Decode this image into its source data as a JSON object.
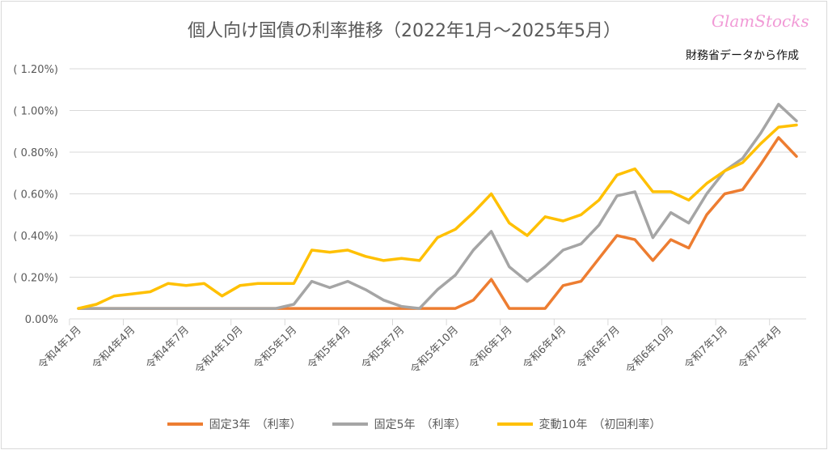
{
  "chart_data": {
    "type": "line",
    "title": "個人向け国債の利率推移（2022年1月～2025年5月）",
    "logo_text": "GlamStocks",
    "source_note": "財務省データから作成",
    "xlabel": "",
    "ylabel": "",
    "ylim": [
      0,
      1.2
    ],
    "y_ticks": [
      0,
      0.2,
      0.4,
      0.6,
      0.8,
      1.0,
      1.2
    ],
    "y_tick_labels": [
      "0.00%",
      "( 0.20%)",
      "( 0.40%)",
      "( 0.60%)",
      "( 0.80%)",
      "( 1.00%)",
      "( 1.20%)"
    ],
    "grid": true,
    "legend_position": "bottom",
    "x_tick_labels": [
      "令和4年1月",
      "令和4年4月",
      "令和4年7月",
      "令和4年10月",
      "令和5年1月",
      "令和5年4月",
      "令和5年7月",
      "令和5年10月",
      "令和6年1月",
      "令和6年4月",
      "令和6年7月",
      "令和6年10月",
      "令和7年1月",
      "令和7年4月"
    ],
    "x_tick_interval_months": 3,
    "series": [
      {
        "name": "固定3年　（利率）",
        "color": "#ed7d31",
        "values": [
          0.05,
          0.05,
          0.05,
          0.05,
          0.05,
          0.05,
          0.05,
          0.05,
          0.05,
          0.05,
          0.05,
          0.05,
          0.05,
          0.05,
          0.05,
          0.05,
          0.05,
          0.05,
          0.05,
          0.05,
          0.05,
          0.05,
          0.09,
          0.19,
          0.05,
          0.05,
          0.05,
          0.16,
          0.18,
          0.29,
          0.4,
          0.38,
          0.28,
          0.38,
          0.34,
          0.5,
          0.6,
          0.62,
          0.74,
          0.87,
          0.78
        ]
      },
      {
        "name": "固定5年　（利率）",
        "color": "#a5a5a5",
        "values": [
          0.05,
          0.05,
          0.05,
          0.05,
          0.05,
          0.05,
          0.05,
          0.05,
          0.05,
          0.05,
          0.05,
          0.05,
          0.07,
          0.18,
          0.15,
          0.18,
          0.14,
          0.09,
          0.06,
          0.05,
          0.14,
          0.21,
          0.33,
          0.42,
          0.25,
          0.18,
          0.25,
          0.33,
          0.36,
          0.45,
          0.59,
          0.61,
          0.39,
          0.51,
          0.46,
          0.6,
          0.71,
          0.77,
          0.89,
          1.03,
          0.95
        ]
      },
      {
        "name": "変動10年　（初回利率）",
        "color": "#ffc000",
        "values": [
          0.05,
          0.07,
          0.11,
          0.12,
          0.13,
          0.17,
          0.16,
          0.17,
          0.11,
          0.16,
          0.17,
          0.17,
          0.17,
          0.33,
          0.32,
          0.33,
          0.3,
          0.28,
          0.29,
          0.28,
          0.39,
          0.43,
          0.51,
          0.6,
          0.46,
          0.4,
          0.49,
          0.47,
          0.5,
          0.57,
          0.69,
          0.72,
          0.61,
          0.61,
          0.57,
          0.65,
          0.71,
          0.75,
          0.84,
          0.92,
          0.93
        ]
      }
    ]
  }
}
